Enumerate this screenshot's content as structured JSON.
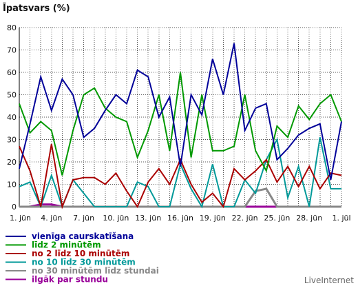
{
  "chart_data": {
    "type": "line",
    "title": "Īpatsvars (%)",
    "xlabel": "",
    "ylabel": "",
    "ylim": [
      0,
      80
    ],
    "yticks": [
      0,
      10,
      20,
      30,
      40,
      50,
      60,
      70,
      80
    ],
    "grid": true,
    "legend_position": "bottom",
    "categories": [
      "1. jūn",
      "2. jūn",
      "3. jūn",
      "4. jūn",
      "5. jūn",
      "6. jūn",
      "7. jūn",
      "8. jūn",
      "9. jūn",
      "10. jūn",
      "11. jūn",
      "12. jūn",
      "13. jūn",
      "14. jūn",
      "15. jūn",
      "16. jūn",
      "17. jūn",
      "18. jūn",
      "19. jūn",
      "20. jūn",
      "21. jūn",
      "22. jūn",
      "23. jūn",
      "24. jūn",
      "25. jūn",
      "26. jūn",
      "27. jūn",
      "28. jūn",
      "29. jūn",
      "30. jūn",
      "1. jūl"
    ],
    "xtick_labels": [
      {
        "index": 0,
        "label": "1. jūn"
      },
      {
        "index": 3,
        "label": "4. jūn"
      },
      {
        "index": 6,
        "label": "7. jūn"
      },
      {
        "index": 9,
        "label": "10. jūn"
      },
      {
        "index": 12,
        "label": "13. jūn"
      },
      {
        "index": 15,
        "label": "16. jūn"
      },
      {
        "index": 18,
        "label": "19. jūn"
      },
      {
        "index": 21,
        "label": "22. jūn"
      },
      {
        "index": 24,
        "label": "25. jūn"
      },
      {
        "index": 27,
        "label": "28. jūn"
      },
      {
        "index": 30,
        "label": "1. jūl"
      }
    ],
    "series": [
      {
        "name": "vienīga caurskatīšana",
        "color": "#000099",
        "values": [
          17,
          37,
          58,
          43,
          57,
          50,
          31,
          35,
          43,
          50,
          46,
          61,
          58,
          40,
          49,
          18,
          50,
          41,
          66,
          50,
          73,
          34,
          44,
          46,
          21,
          26,
          32,
          35,
          37,
          12,
          38
        ]
      },
      {
        "name": "līdz 2 minūtēm",
        "color": "#009900",
        "values": [
          46,
          33,
          38,
          34,
          14,
          34,
          50,
          53,
          44,
          40,
          38,
          22,
          34,
          50,
          25,
          60,
          22,
          50,
          25,
          25,
          27,
          50,
          25,
          16,
          36,
          31,
          45,
          39,
          46,
          50,
          38
        ]
      },
      {
        "name": "no 2 līdz 10 minūtēm",
        "color": "#aa0000",
        "values": [
          27,
          16,
          0,
          28,
          0,
          12,
          13,
          13,
          10,
          15,
          7,
          0,
          11,
          17,
          10,
          21,
          10,
          2,
          6,
          0,
          17,
          12,
          16,
          21,
          11,
          18,
          9,
          18,
          8,
          15,
          14
        ]
      },
      {
        "name": "no 10 līdz 30 minūtēm",
        "color": "#009999",
        "values": [
          9,
          11,
          0,
          14,
          0,
          12,
          6,
          0,
          0,
          0,
          0,
          11,
          9,
          0,
          0,
          19,
          8,
          0,
          19,
          0,
          0,
          12,
          6,
          21,
          30,
          4,
          18,
          0,
          31,
          8,
          8
        ]
      },
      {
        "name": "no 30 minūtēm līdz stundai",
        "color": "#888888",
        "values": [
          0,
          0,
          0,
          0,
          0,
          0,
          0,
          0,
          0,
          0,
          0,
          0,
          0,
          0,
          0,
          0,
          0,
          0,
          0,
          0,
          0,
          0,
          7,
          8,
          0,
          0,
          0,
          0,
          0,
          0,
          0
        ]
      },
      {
        "name": "ilgāk par stundu",
        "color": "#990099",
        "values": [
          0,
          0,
          1,
          1,
          0,
          0,
          0,
          0,
          0,
          0,
          0,
          0,
          0,
          0,
          0,
          0,
          0,
          0,
          0,
          0,
          0,
          0,
          0,
          0,
          0,
          0,
          0,
          0,
          0,
          0,
          0
        ]
      }
    ]
  },
  "brand": "LiveInternet"
}
